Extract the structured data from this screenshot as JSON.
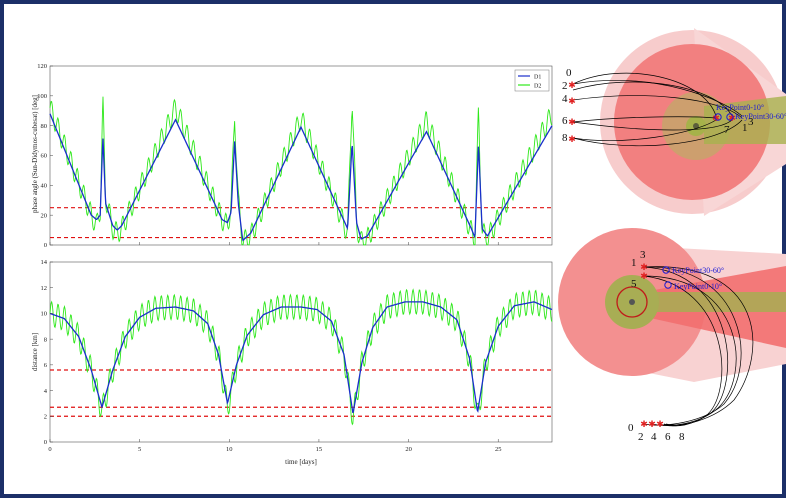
{
  "chart_data": [
    {
      "type": "line",
      "ylabel": "phase angle (Sun-Didymos-cubesat) [deg]",
      "xlabel": "",
      "xlim": [
        0,
        28
      ],
      "ylim": [
        0,
        120
      ],
      "xticks": [
        0,
        5,
        10,
        15,
        20,
        25
      ],
      "yticks": [
        0,
        20,
        40,
        60,
        80,
        100,
        120
      ],
      "grid": false,
      "legend": "top-right",
      "series": [
        {
          "name": "D1",
          "color": "#1a2fcc",
          "points": [
            [
              0,
              88
            ],
            [
              2.3,
              20
            ],
            [
              2.6,
              17
            ],
            [
              2.8,
              20
            ],
            [
              2.95,
              73
            ],
            [
              3.1,
              28
            ],
            [
              3.5,
              13
            ],
            [
              3.75,
              10
            ],
            [
              4.0,
              13
            ],
            [
              7.0,
              84
            ],
            [
              9.6,
              17
            ],
            [
              9.9,
              15
            ],
            [
              10.1,
              22
            ],
            [
              10.3,
              70
            ],
            [
              10.5,
              28
            ],
            [
              10.75,
              3
            ],
            [
              11.2,
              8
            ],
            [
              14.0,
              79
            ],
            [
              16.6,
              11
            ],
            [
              16.85,
              69
            ],
            [
              17.1,
              15
            ],
            [
              17.35,
              4
            ],
            [
              17.7,
              6
            ],
            [
              21.0,
              76
            ],
            [
              23.5,
              11
            ],
            [
              23.7,
              5
            ],
            [
              23.9,
              68
            ],
            [
              24.1,
              11
            ],
            [
              24.4,
              6
            ],
            [
              28,
              80
            ]
          ]
        },
        {
          "name": "D2",
          "color": "#2ee81a",
          "points": [
            [
              0,
              92
            ],
            [
              2.3,
              20
            ],
            [
              2.6,
              13
            ],
            [
              2.8,
              24
            ],
            [
              2.95,
              95
            ],
            [
              3.1,
              32
            ],
            [
              3.5,
              11
            ],
            [
              3.75,
              8
            ],
            [
              4.0,
              11
            ],
            [
              7.0,
              92
            ],
            [
              9.6,
              17
            ],
            [
              9.9,
              13
            ],
            [
              10.1,
              26
            ],
            [
              10.3,
              88
            ],
            [
              10.5,
              30
            ],
            [
              10.75,
              2
            ],
            [
              11.2,
              6
            ],
            [
              14.0,
              85
            ],
            [
              16.6,
              8
            ],
            [
              16.85,
              100
            ],
            [
              17.1,
              13
            ],
            [
              17.35,
              2
            ],
            [
              17.7,
              4
            ],
            [
              21.0,
              83
            ],
            [
              23.5,
              9
            ],
            [
              23.7,
              3
            ],
            [
              23.9,
              90
            ],
            [
              24.1,
              9
            ],
            [
              24.4,
              4
            ],
            [
              28,
              88
            ]
          ],
          "oscillation": {
            "amplitude_deg": 7,
            "period_days": 0.36
          }
        }
      ],
      "reference_lines": [
        {
          "y": 25,
          "color": "#e01010",
          "style": "dashed"
        },
        {
          "y": 5,
          "color": "#e01010",
          "style": "dashed"
        }
      ]
    },
    {
      "type": "line",
      "ylabel": "distance [km]",
      "xlabel": "time [days]",
      "xlim": [
        0,
        28
      ],
      "ylim": [
        0,
        14
      ],
      "xticks": [
        0,
        5,
        10,
        15,
        20,
        25
      ],
      "yticks": [
        0,
        2,
        4,
        6,
        8,
        10,
        12,
        14
      ],
      "grid": false,
      "series": [
        {
          "name": "D1",
          "color": "#1a2fcc",
          "points": [
            [
              0,
              10.0
            ],
            [
              0.8,
              9.6
            ],
            [
              1.6,
              8.2
            ],
            [
              2.3,
              5.6
            ],
            [
              2.9,
              2.7
            ],
            [
              3.5,
              5.6
            ],
            [
              4.2,
              8.2
            ],
            [
              5.0,
              9.7
            ],
            [
              5.9,
              10.4
            ],
            [
              7.0,
              10.5
            ],
            [
              8.0,
              10.2
            ],
            [
              8.8,
              9.2
            ],
            [
              9.4,
              6.8
            ],
            [
              9.9,
              3.0
            ],
            [
              10.4,
              6.0
            ],
            [
              11.0,
              8.3
            ],
            [
              11.9,
              9.9
            ],
            [
              12.9,
              10.5
            ],
            [
              14.0,
              10.5
            ],
            [
              14.9,
              10.3
            ],
            [
              15.7,
              9.4
            ],
            [
              16.4,
              6.8
            ],
            [
              16.9,
              2.2
            ],
            [
              17.4,
              6.2
            ],
            [
              18.0,
              8.9
            ],
            [
              18.8,
              10.5
            ],
            [
              19.8,
              10.9
            ],
            [
              20.8,
              10.9
            ],
            [
              21.8,
              10.5
            ],
            [
              22.7,
              9.5
            ],
            [
              23.4,
              6.5
            ],
            [
              23.85,
              2.3
            ],
            [
              24.3,
              6.2
            ],
            [
              25.0,
              9.0
            ],
            [
              25.9,
              10.6
            ],
            [
              27.0,
              10.9
            ],
            [
              28,
              10.3
            ]
          ]
        },
        {
          "name": "D2",
          "color": "#2ee81a",
          "points": [
            [
              0,
              10.0
            ],
            [
              0.8,
              9.6
            ],
            [
              1.6,
              8.2
            ],
            [
              2.3,
              5.6
            ],
            [
              2.9,
              2.4
            ],
            [
              3.5,
              5.6
            ],
            [
              4.2,
              8.2
            ],
            [
              5.0,
              9.7
            ],
            [
              5.9,
              10.4
            ],
            [
              7.0,
              10.5
            ],
            [
              8.0,
              10.2
            ],
            [
              8.8,
              9.2
            ],
            [
              9.4,
              6.8
            ],
            [
              9.9,
              2.6
            ],
            [
              10.4,
              6.0
            ],
            [
              11.0,
              8.3
            ],
            [
              11.9,
              9.9
            ],
            [
              12.9,
              10.5
            ],
            [
              14.0,
              10.5
            ],
            [
              14.9,
              10.3
            ],
            [
              15.7,
              9.4
            ],
            [
              16.4,
              6.8
            ],
            [
              16.9,
              1.8
            ],
            [
              17.4,
              6.2
            ],
            [
              18.0,
              8.9
            ],
            [
              18.8,
              10.5
            ],
            [
              19.8,
              10.9
            ],
            [
              20.8,
              10.9
            ],
            [
              21.8,
              10.5
            ],
            [
              22.7,
              9.5
            ],
            [
              23.4,
              6.5
            ],
            [
              23.85,
              1.9
            ],
            [
              24.3,
              6.2
            ],
            [
              25.0,
              9.0
            ],
            [
              25.9,
              10.6
            ],
            [
              27.0,
              10.9
            ],
            [
              28,
              10.3
            ]
          ],
          "oscillation": {
            "amplitude_km": 0.95,
            "period_days": 0.36
          }
        }
      ],
      "reference_lines": [
        {
          "y": 5.6,
          "color": "#e01010",
          "style": "dashed"
        },
        {
          "y": 2.7,
          "color": "#e01010",
          "style": "dashed"
        },
        {
          "y": 2.0,
          "color": "#e01010",
          "style": "dashed"
        }
      ]
    }
  ],
  "diagrams": {
    "top": {
      "point_labels": [
        "0",
        "2",
        "4",
        "6",
        "8",
        "7",
        "1",
        "3"
      ],
      "keypoint_labels": [
        "KeyPoint0-10°",
        "KeyPoint30-60°"
      ]
    },
    "bottom": {
      "point_labels": [
        "1",
        "3",
        "5",
        "0",
        "2",
        "4",
        "6",
        "8"
      ],
      "keypoint_labels": [
        "KeyPoint30-60°",
        "KeyPoint0-10°"
      ]
    }
  },
  "colors": {
    "frame": "#1c2f68",
    "ring_outer": "#f7c4c4",
    "ring_mid": "#f47d7d",
    "ring_inner": "#c9a87a",
    "body": "#9aa84a",
    "threshold": "#e01010"
  }
}
